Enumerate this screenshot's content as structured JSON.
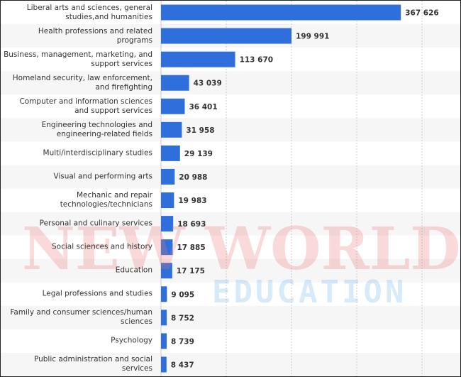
{
  "chart_data": {
    "type": "hbar",
    "categories": [
      "Liberal arts and sciences, general\nstudies,and humanities",
      "Health professions and related\nprograms",
      "Business, management, marketing, and\nsupport services",
      "Homeland security, law enforcement,\nand firefighting",
      "Computer and information sciences\nand support services",
      "Engineering technologies and\nengineering-related fields",
      "Multi/interdisciplinary studies",
      "Visual and performing arts",
      "Mechanic and repair\ntechnologies/technicians",
      "Personal and culinary services",
      "Social sciences and history",
      "Education",
      "Legal professions and studies",
      "Family and consumer sciences/human\nsciences",
      "Psychology",
      "Public administration and social\nservices"
    ],
    "values": [
      367626,
      199991,
      113670,
      43039,
      36401,
      31958,
      29139,
      20988,
      19983,
      18693,
      17885,
      17175,
      9095,
      8752,
      8739,
      8437
    ],
    "value_labels": [
      "367 626",
      "199 991",
      "113 670",
      "43 039",
      "36 401",
      "31 958",
      "29 139",
      "20 988",
      "19 983",
      "18 693",
      "17 885",
      "17 175",
      "9 095",
      "8 752",
      "8 739",
      "8 437"
    ],
    "color": "#2f6fdb",
    "xlim": [
      0,
      450000
    ],
    "xticks": [
      0,
      100000,
      200000,
      300000,
      400000
    ],
    "grid": true,
    "watermark": [
      "NEW WORLD",
      "EDUCATION"
    ]
  }
}
